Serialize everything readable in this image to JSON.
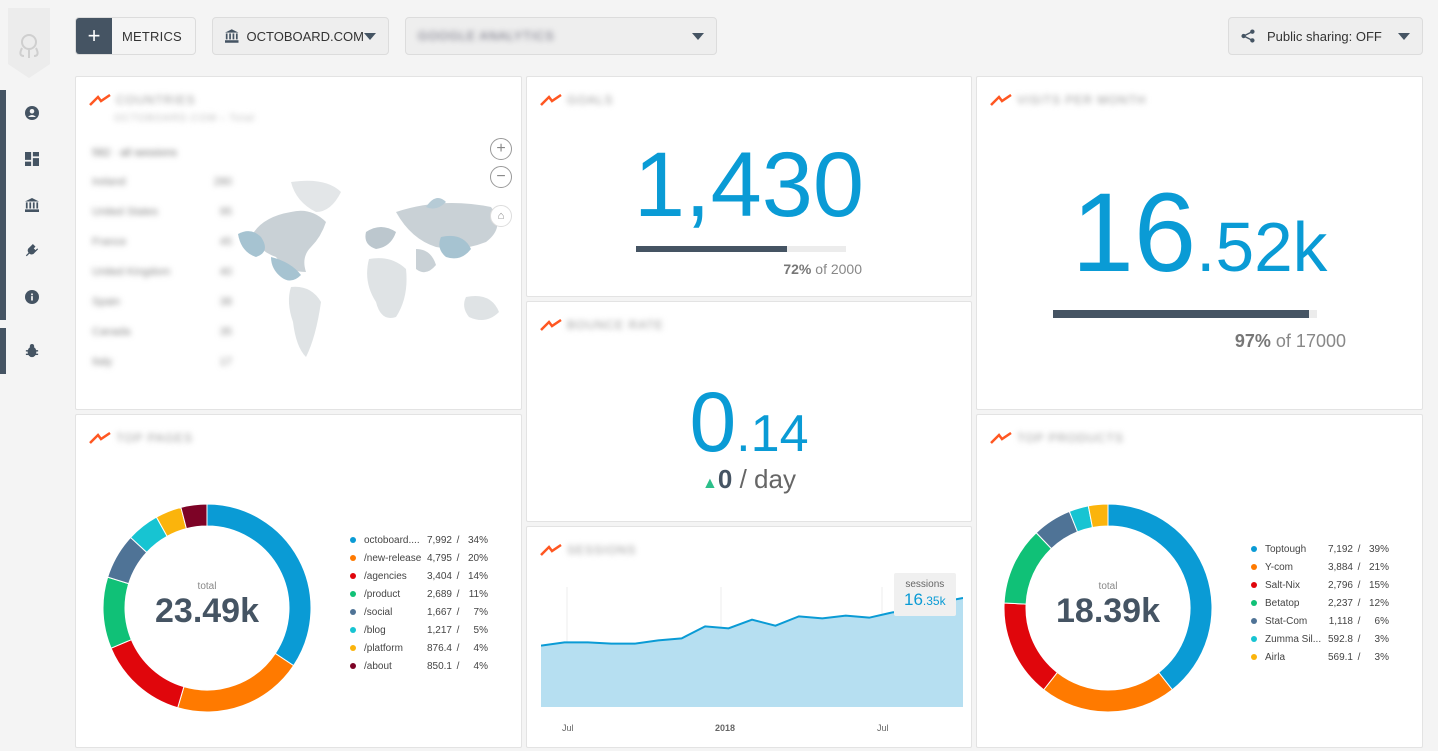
{
  "toolbar": {
    "metrics_label": "METRICS",
    "account_label": "OCTOBOARD.COM",
    "source_label": "GOOGLE ANALYTICS",
    "share_label": "Public sharing: OFF"
  },
  "sidebar": {
    "items": [
      {
        "name": "profile-icon"
      },
      {
        "name": "dashboard-icon"
      },
      {
        "name": "bank-icon"
      },
      {
        "name": "plug-icon"
      },
      {
        "name": "info-icon"
      }
    ],
    "bug_icon": "bug-icon"
  },
  "countries": {
    "title": "COUNTRIES",
    "subtitle": "OCTOBOARD.COM › Total",
    "head": "582 · all sessions",
    "rows": [
      {
        "name": "Ireland",
        "value": "280"
      },
      {
        "name": "United States",
        "value": "95"
      },
      {
        "name": "France",
        "value": "45"
      },
      {
        "name": "United Kingdom",
        "value": "40"
      },
      {
        "name": "Spain",
        "value": "38"
      },
      {
        "name": "Canada",
        "value": "35"
      },
      {
        "name": "Italy",
        "value": "17"
      }
    ]
  },
  "goals": {
    "title": "GOALS",
    "value": "1,430",
    "progress_pct": "72%",
    "progress_of": "of 2000",
    "progress_fraction": 0.72
  },
  "visitors": {
    "title": "VISITS PER MONTH",
    "value_int": "16",
    "value_dec": ".52k",
    "progress_pct": "97%",
    "progress_of": "of 17000",
    "progress_fraction": 0.97
  },
  "bounce": {
    "title": "BOUNCE RATE",
    "value_int": "0",
    "value_dec": ".14",
    "trend_value": "0",
    "trend_unit": "/ day"
  },
  "pages": {
    "title": "TOP PAGES",
    "total_label": "total",
    "total_value": "23.49k",
    "items": [
      {
        "name": "octoboard....",
        "value": "7,992",
        "pct": "34%",
        "color": "#0a9bd5",
        "share": 34
      },
      {
        "name": "/new-release",
        "value": "4,795",
        "pct": "20%",
        "color": "#ff7a00",
        "share": 20
      },
      {
        "name": "/agencies",
        "value": "3,404",
        "pct": "14%",
        "color": "#e0060c",
        "share": 14
      },
      {
        "name": "/product",
        "value": "2,689",
        "pct": "11%",
        "color": "#10c177",
        "share": 11
      },
      {
        "name": "/social",
        "value": "1,667",
        "pct": "7%",
        "color": "#4f7396",
        "share": 7
      },
      {
        "name": "/blog",
        "value": "1,217",
        "pct": "5%",
        "color": "#17c4d2",
        "share": 5
      },
      {
        "name": "/platform",
        "value": "876.4",
        "pct": "4%",
        "color": "#fbb40c",
        "share": 4
      },
      {
        "name": "/about",
        "value": "850.1",
        "pct": "4%",
        "color": "#7d0326",
        "share": 4
      }
    ]
  },
  "sessions": {
    "title": "SESSIONS",
    "tooltip_label": "sessions",
    "tooltip_value": "16",
    "tooltip_unit": ".35k",
    "x_labels": [
      "Jul",
      "2018",
      "Jul"
    ]
  },
  "chart_data": {
    "type": "area",
    "title": "",
    "series": [
      {
        "values": [
          9.2,
          9.7,
          9.7,
          9.5,
          9.5,
          10.0,
          10.3,
          12.1,
          11.8,
          13.1,
          12.2,
          13.6,
          13.3,
          13.7,
          13.4,
          14.2,
          14.6,
          15.7,
          16.35
        ]
      }
    ],
    "x_tick_labels": [
      "Jul",
      "2018",
      "Jul"
    ],
    "ylim": [
      0,
      18
    ],
    "grid": true
  },
  "products": {
    "title": "TOP PRODUCTS",
    "total_label": "total",
    "total_value": "18.39k",
    "items": [
      {
        "name": "Toptough",
        "value": "7,192",
        "pct": "39%",
        "color": "#0a9bd5",
        "share": 39
      },
      {
        "name": "Y-com",
        "value": "3,884",
        "pct": "21%",
        "color": "#ff7a00",
        "share": 21
      },
      {
        "name": "Salt-Nix",
        "value": "2,796",
        "pct": "15%",
        "color": "#e0060c",
        "share": 15
      },
      {
        "name": "Betatop",
        "value": "2,237",
        "pct": "12%",
        "color": "#10c177",
        "share": 12
      },
      {
        "name": "Stat-Com",
        "value": "1,118",
        "pct": "6%",
        "color": "#4f7396",
        "share": 6
      },
      {
        "name": "Zumma Sil...",
        "value": "592.8",
        "pct": "3%",
        "color": "#17c4d2",
        "share": 3
      },
      {
        "name": "Airla",
        "value": "569.1",
        "pct": "3%",
        "color": "#fbb40c",
        "share": 3
      }
    ]
  }
}
